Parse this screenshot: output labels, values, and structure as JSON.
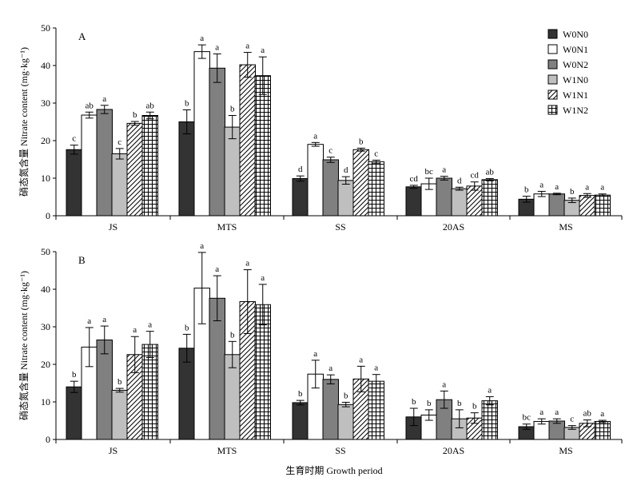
{
  "chart_data": {
    "type": "bar",
    "xlabel": "生育时期 Growth period",
    "ylabel": "硝态氮含量 Nitrate content (mg·kg⁻¹)",
    "categories": [
      "JS",
      "MTS",
      "SS",
      "20AS",
      "MS"
    ],
    "ylim": [
      0,
      50
    ],
    "yticks": [
      0,
      10,
      20,
      30,
      40,
      50
    ],
    "grid": false,
    "legend": {
      "position": "top-right",
      "entries": [
        {
          "name": "W0N0",
          "fill": "#333333",
          "pattern": "solid"
        },
        {
          "name": "W0N1",
          "fill": "#ffffff",
          "pattern": "solid"
        },
        {
          "name": "W0N2",
          "fill": "#808080",
          "pattern": "solid"
        },
        {
          "name": "W1N0",
          "fill": "#bfbfbf",
          "pattern": "solid"
        },
        {
          "name": "W1N1",
          "fill": "#ffffff",
          "pattern": "diagonal"
        },
        {
          "name": "W1N2",
          "fill": "#ffffff",
          "pattern": "grid"
        }
      ]
    },
    "panels": [
      {
        "label": "A",
        "series": [
          {
            "name": "W0N0",
            "values": [
              17.6,
              25.0,
              9.9,
              7.7,
              4.4
            ],
            "errors": [
              1.2,
              3.2,
              0.7,
              0.4,
              0.8
            ],
            "letters": [
              "c",
              "b",
              "d",
              "cd",
              "b"
            ]
          },
          {
            "name": "W0N1",
            "values": [
              26.8,
              43.7,
              19.0,
              8.5,
              5.8
            ],
            "errors": [
              0.8,
              1.8,
              0.5,
              1.5,
              0.7
            ],
            "letters": [
              "ab",
              "a",
              "a",
              "bc",
              "a"
            ]
          },
          {
            "name": "W0N2",
            "values": [
              28.3,
              39.3,
              14.9,
              10.0,
              5.8
            ],
            "errors": [
              1.1,
              3.8,
              0.7,
              0.5,
              0.2
            ],
            "letters": [
              "a",
              "a",
              "c",
              "a",
              "a"
            ]
          },
          {
            "name": "W1N0",
            "values": [
              16.5,
              23.6,
              9.4,
              7.2,
              4.1
            ],
            "errors": [
              1.4,
              3.1,
              1.0,
              0.4,
              0.6
            ],
            "letters": [
              "c",
              "b",
              "d",
              "d",
              "b"
            ]
          },
          {
            "name": "W1N1",
            "values": [
              24.6,
              40.2,
              17.6,
              7.9,
              5.4
            ],
            "errors": [
              0.5,
              3.3,
              0.4,
              1.1,
              0.5
            ],
            "letters": [
              "b",
              "a",
              "b",
              "cd",
              "a"
            ]
          },
          {
            "name": "W1N2",
            "values": [
              26.7,
              37.3,
              14.4,
              9.6,
              5.5
            ],
            "errors": [
              0.9,
              5.0,
              0.4,
              0.3,
              0.3
            ],
            "letters": [
              "ab",
              "a",
              "c",
              "ab",
              "a"
            ]
          }
        ]
      },
      {
        "label": "B",
        "series": [
          {
            "name": "W0N0",
            "values": [
              14.0,
              24.3,
              9.8,
              6.0,
              3.4
            ],
            "errors": [
              1.5,
              3.7,
              0.6,
              2.3,
              0.7
            ],
            "letters": [
              "b",
              "b",
              "b",
              "b",
              "bc"
            ]
          },
          {
            "name": "W0N1",
            "values": [
              24.6,
              40.3,
              17.4,
              6.5,
              4.8
            ],
            "errors": [
              5.2,
              9.5,
              3.7,
              1.4,
              0.7
            ],
            "letters": [
              "a",
              "a",
              "a",
              "b",
              "a"
            ]
          },
          {
            "name": "W0N2",
            "values": [
              26.5,
              37.6,
              16.0,
              10.6,
              4.9
            ],
            "errors": [
              3.7,
              6.0,
              1.2,
              2.3,
              0.6
            ],
            "letters": [
              "a",
              "a",
              "a",
              "a",
              "a"
            ]
          },
          {
            "name": "W1N0",
            "values": [
              13.1,
              22.6,
              9.3,
              5.5,
              3.2
            ],
            "errors": [
              0.5,
              3.5,
              0.6,
              2.4,
              0.5
            ],
            "letters": [
              "b",
              "b",
              "b",
              "b",
              "c"
            ]
          },
          {
            "name": "W1N1",
            "values": [
              22.6,
              36.7,
              16.1,
              5.7,
              4.3
            ],
            "errors": [
              4.8,
              8.5,
              3.4,
              1.4,
              0.9
            ],
            "letters": [
              "a",
              "a",
              "a",
              "b",
              "ab"
            ]
          },
          {
            "name": "W1N2",
            "values": [
              25.3,
              35.9,
              15.5,
              10.3,
              4.8
            ],
            "errors": [
              3.5,
              5.4,
              1.8,
              1.1,
              0.3
            ],
            "letters": [
              "a",
              "a",
              "a",
              "a",
              "a"
            ]
          }
        ]
      }
    ]
  }
}
